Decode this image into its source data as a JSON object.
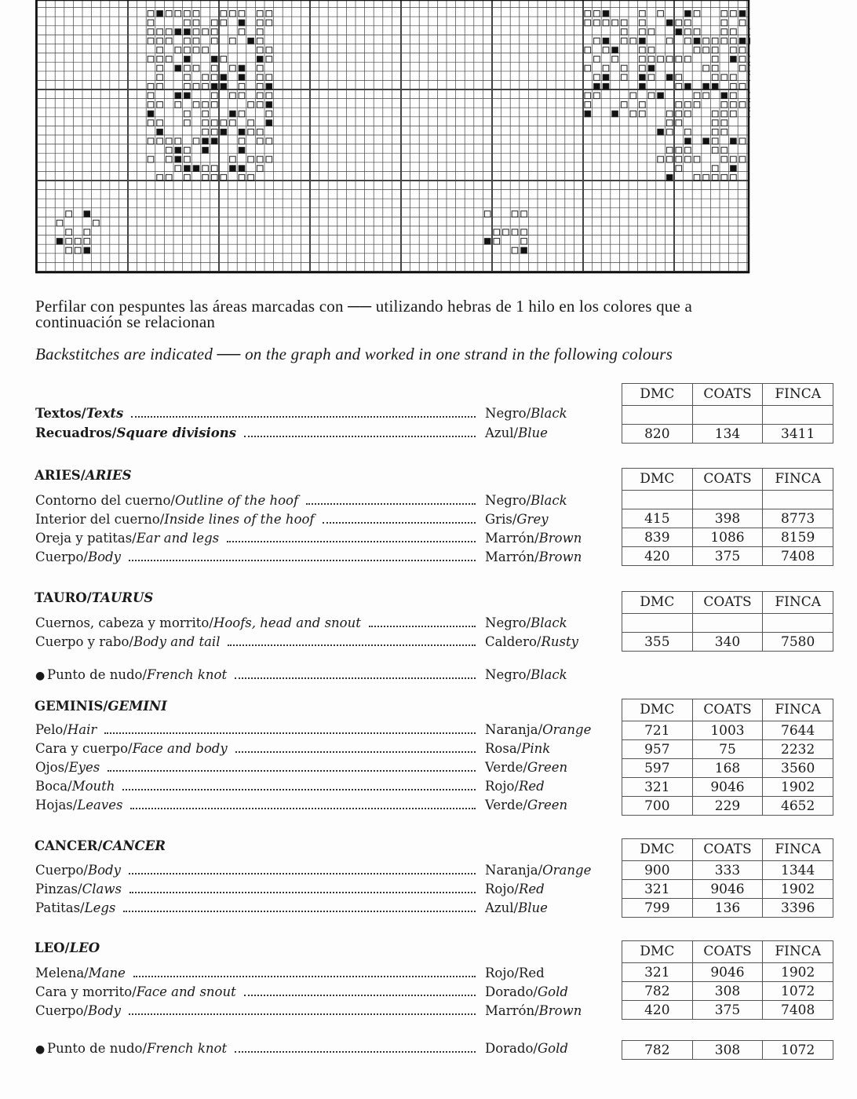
{
  "intro": {
    "es_line1": "Perfilar con pespuntes las áreas marcadas con ── utilizando hebras de 1 hilo en los colores que a",
    "es_line2": "continuación se relacionan",
    "en": "Backstitches are indicated  ──  on the graph and worked in one strand in the following colours"
  },
  "table_headers": [
    "DMC",
    "COATS",
    "FINCA"
  ],
  "sections": [
    {
      "heading_es": "",
      "heading_en": "",
      "items": [
        {
          "es": "Textos/",
          "en": "Texts",
          "bold": true,
          "color_es": "Negro/",
          "color_en": "Black"
        },
        {
          "es": "Recuadros/",
          "en": "Square divisions",
          "bold": true,
          "color_es": "Azul/",
          "color_en": "Blue"
        }
      ],
      "tables": [
        {
          "header": true,
          "rows": [
            [
              "",
              "",
              ""
            ],
            [
              "820",
              "134",
              "3411"
            ]
          ]
        }
      ]
    },
    {
      "heading_es": "ARIES/",
      "heading_en": "ARIES",
      "items": [
        {
          "es": "Contorno del cuerno/",
          "en": "Outline of the hoof",
          "color_es": "Negro/",
          "color_en": "Black"
        },
        {
          "es": "Interior del cuerno/",
          "en": "Inside lines of the hoof",
          "color_es": "Gris/",
          "color_en": "Grey"
        },
        {
          "es": "Oreja y patitas/",
          "en": "Ear and legs",
          "color_es": "Marrón/",
          "color_en": "Brown"
        },
        {
          "es": "Cuerpo/",
          "en": "Body",
          "color_es": "Marrón/",
          "color_en": "Brown"
        }
      ],
      "tables": [
        {
          "header": true,
          "rows": [
            [
              "",
              "",
              ""
            ],
            [
              "415",
              "398",
              "8773"
            ],
            [
              "839",
              "1086",
              "8159"
            ],
            [
              "420",
              "375",
              "7408"
            ]
          ]
        }
      ]
    },
    {
      "heading_es": "TAURO/",
      "heading_en": "TAURUS",
      "items": [
        {
          "es": "Cuernos, cabeza y morrito/",
          "en": "Hoofs, head and snout",
          "color_es": "Negro/",
          "color_en": "Black"
        },
        {
          "es": "Cuerpo y rabo/",
          "en": "Body and tail",
          "color_es": "Caldero/",
          "color_en": "Rusty"
        },
        {
          "es": "Punto de nudo/",
          "en": "French knot",
          "bullet": true,
          "color_es": "Negro/",
          "color_en": "Black"
        }
      ],
      "tables": [
        {
          "header": true,
          "rows": [
            [
              "",
              "",
              ""
            ],
            [
              "355",
              "340",
              "7580"
            ]
          ]
        }
      ]
    },
    {
      "heading_es": "GEMINIS/",
      "heading_en": "GEMINI",
      "items": [
        {
          "es": "Pelo/",
          "en": "Hair",
          "color_es": "Naranja/",
          "color_en": "Orange"
        },
        {
          "es": "Cara y cuerpo/",
          "en": "Face and body",
          "color_es": "Rosa/",
          "color_en": "Pink"
        },
        {
          "es": "Ojos/",
          "en": "Eyes",
          "color_es": "Verde/",
          "color_en": "Green"
        },
        {
          "es": "Boca/",
          "en": "Mouth",
          "color_es": "Rojo/",
          "color_en": "Red"
        },
        {
          "es": "Hojas/",
          "en": "Leaves",
          "color_es": "Verde/",
          "color_en": "Green"
        }
      ],
      "tables": [
        {
          "header": true,
          "rows": [
            [
              "721",
              "1003",
              "7644"
            ],
            [
              "957",
              "75",
              "2232"
            ],
            [
              "597",
              "168",
              "3560"
            ],
            [
              "321",
              "9046",
              "1902"
            ],
            [
              "700",
              "229",
              "4652"
            ]
          ]
        }
      ]
    },
    {
      "heading_es": "CANCER/",
      "heading_en": "CANCER",
      "items": [
        {
          "es": "Cuerpo/",
          "en": "Body",
          "color_es": "Naranja/",
          "color_en": "Orange"
        },
        {
          "es": "Pinzas/",
          "en": "Claws",
          "color_es": "Rojo/",
          "color_en": "Red"
        },
        {
          "es": "Patitas/",
          "en": "Legs",
          "color_es": "Azul/",
          "color_en": "Blue"
        }
      ],
      "tables": [
        {
          "header": true,
          "rows": [
            [
              "900",
              "333",
              "1344"
            ],
            [
              "321",
              "9046",
              "1902"
            ],
            [
              "799",
              "136",
              "3396"
            ]
          ]
        }
      ]
    },
    {
      "heading_es": "LEO/",
      "heading_en": "LEO",
      "items": [
        {
          "es": "Melena/",
          "en": "Mane",
          "color_es": "Rojo/",
          "color_en": "Red",
          "color_upright": true
        },
        {
          "es": "Cara y morrito/",
          "en": "Face and snout",
          "color_es": "Dorado/",
          "color_en": "Gold"
        },
        {
          "es": "Cuerpo/",
          "en": "Body",
          "color_es": "Marrón/",
          "color_en": "Brown"
        },
        {
          "es": "Punto de nudo/",
          "en": "French knot",
          "bullet": true,
          "color_es": "Dorado/",
          "color_en": "Gold"
        }
      ],
      "tables": [
        {
          "header": true,
          "rows": [
            [
              "321",
              "9046",
              "1902"
            ],
            [
              "782",
              "308",
              "1072"
            ],
            [
              "420",
              "375",
              "7408"
            ]
          ]
        },
        {
          "header": false,
          "rows": [
            [
              "782",
              "308",
              "1072"
            ]
          ]
        }
      ]
    }
  ]
}
